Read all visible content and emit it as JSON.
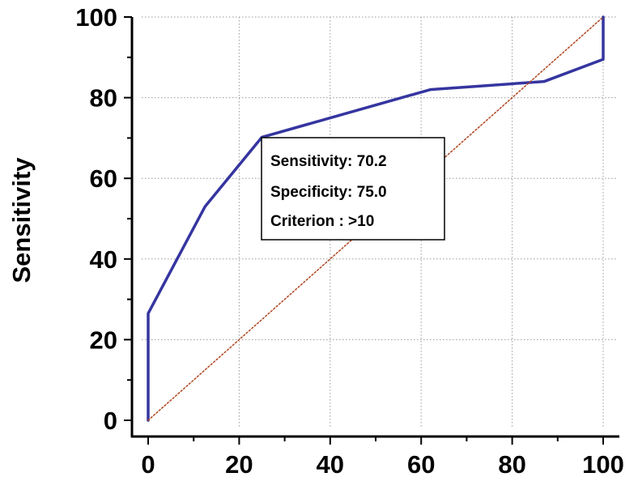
{
  "chart_data": {
    "type": "line",
    "title": "",
    "xlabel": "",
    "ylabel": "Sensitivity",
    "xlim": [
      0,
      100
    ],
    "ylim": [
      0,
      100
    ],
    "grid": true,
    "legend": "none",
    "x_ticks": [
      "0",
      "20",
      "40",
      "60",
      "80",
      "100"
    ],
    "y_ticks": [
      "0",
      "20",
      "40",
      "60",
      "80",
      "100"
    ],
    "series": [
      {
        "color": "#3535a0",
        "style": "solid",
        "x": [
          0,
          0,
          12.5,
          25,
          62,
          87,
          100,
          100
        ],
        "y": [
          0,
          26.5,
          53,
          70.2,
          82,
          84,
          89.5,
          100
        ]
      },
      {
        "color": "#b0451e",
        "style": "dotted",
        "x": [
          0,
          100
        ],
        "y": [
          0,
          100
        ]
      }
    ],
    "annotation": {
      "lines": [
        "Sensitivity: 70.2",
        "Specificity: 75.0",
        "Criterion : >10"
      ]
    }
  }
}
